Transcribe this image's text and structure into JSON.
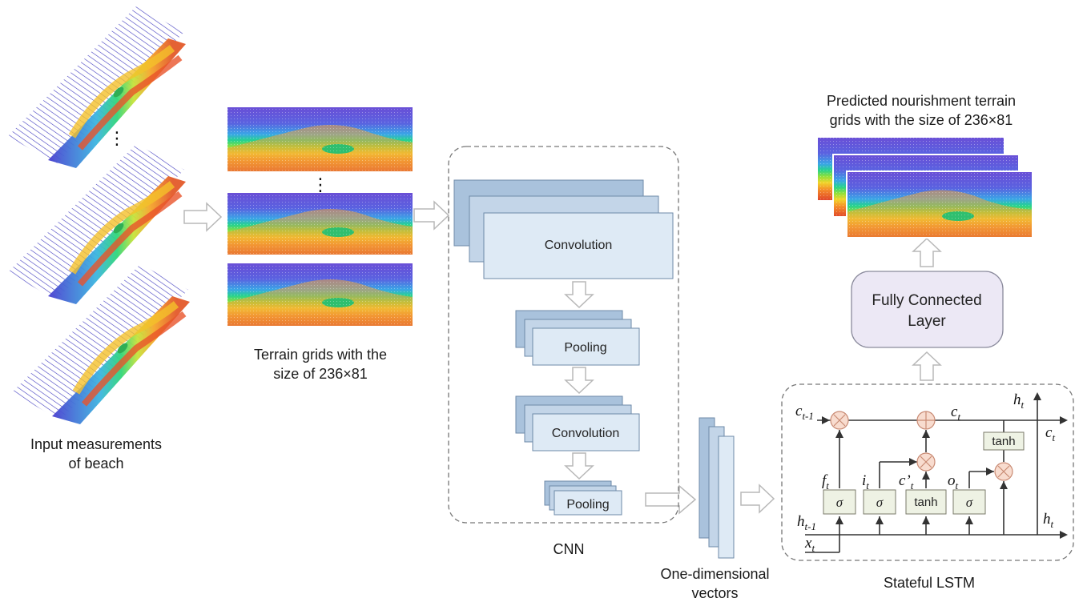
{
  "labels": {
    "input": [
      "Input measurements",
      "of beach"
    ],
    "terrain": [
      "Terrain grids with the",
      "size of 236×81"
    ],
    "cnn": "CNN",
    "vectors": [
      "One-dimensional",
      "vectors"
    ],
    "lstm": "Stateful LSTM",
    "predicted": [
      "Predicted nourishment  terrain",
      "grids with the size of 236×81"
    ]
  },
  "cnn_layers": {
    "conv1": "Convolution",
    "pool1": "Pooling",
    "conv2": "Convolution",
    "pool2": "Pooling"
  },
  "fc_layer": [
    "Fully Connected",
    "Layer"
  ],
  "ellipsis": "⋮",
  "lstm": {
    "gates": {
      "f_gate": "σ",
      "i_gate": "σ",
      "c_gate": "tanh",
      "o_gate": "σ",
      "out_tanh": "tanh"
    },
    "symbols": {
      "c_prev": {
        "main": "c",
        "sub": "t-1"
      },
      "c_t": {
        "main": "c",
        "sub": "t"
      },
      "c_t_out": {
        "main": "c",
        "sub": "t"
      },
      "h_t_top": {
        "main": "h",
        "sub": "t"
      },
      "h_t_right": {
        "main": "h",
        "sub": "t"
      },
      "h_prev": {
        "main": "h",
        "sub": "t-1"
      },
      "x_t": {
        "main": "x",
        "sub": "t"
      },
      "f_t": {
        "main": "f",
        "sub": "t"
      },
      "i_t": {
        "main": "i",
        "sub": "t"
      },
      "c_cand": {
        "main": "c’",
        "sub": "t"
      },
      "o_t": {
        "main": "o",
        "sub": "t"
      }
    }
  },
  "colors": {
    "layer_front": "#deeaf5",
    "layer_back": "#a9c2dc",
    "layer_stroke": "#6e8aa8",
    "fc_fill": "#ece8f5",
    "gate_fill": "#eef2e4",
    "op_fill": "#f8dccf",
    "op_stroke": "#c98b74",
    "arrow_fill": "#ffffff",
    "arrow_stroke": "#b8b8b8",
    "line": "#333333"
  }
}
